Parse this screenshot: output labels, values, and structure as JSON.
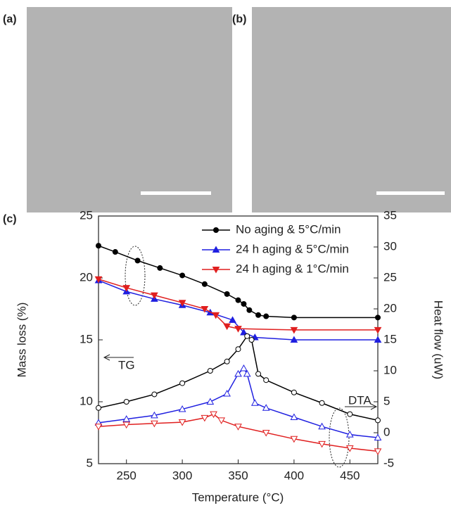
{
  "panel_labels": [
    "(a)",
    "(b)"
  ],
  "chart_data": {
    "type": "line",
    "label": "(c)",
    "xlabel": "Temperature (°C)",
    "ylabel": "Mass loss (%)",
    "y2label": "Heat flow (uW)",
    "xlim": [
      225,
      475
    ],
    "xticks": [
      250,
      300,
      350,
      400,
      450
    ],
    "ylim": [
      5,
      25
    ],
    "yticks": [
      5,
      10,
      15,
      20,
      25
    ],
    "y2lim": [
      -5,
      35
    ],
    "y2ticks": [
      -5,
      0,
      5,
      10,
      15,
      20,
      25,
      30,
      35
    ],
    "legend": "upper right",
    "annotations": [
      "TG",
      "DTA"
    ],
    "series": [
      {
        "name": "No aging & 5°C/min",
        "color": "#000000",
        "marker": "circle",
        "filled": true,
        "x": [
          225,
          240,
          260,
          280,
          300,
          320,
          340,
          350,
          355,
          360,
          368,
          375,
          400,
          475
        ],
        "values": [
          22.6,
          22.1,
          21.4,
          20.8,
          20.2,
          19.5,
          18.7,
          18.2,
          17.9,
          17.4,
          17.0,
          16.9,
          16.8,
          16.8
        ]
      },
      {
        "name": "24 h aging & 5°C/min",
        "color": "#1f1fe0",
        "marker": "triangle-up",
        "filled": true,
        "x": [
          225,
          250,
          275,
          300,
          325,
          345,
          355,
          365,
          400,
          475
        ],
        "values": [
          19.8,
          18.9,
          18.3,
          17.8,
          17.2,
          16.6,
          15.6,
          15.2,
          15.0,
          15.0
        ]
      },
      {
        "name": "24 h aging & 1°C/min",
        "color": "#e01f1f",
        "marker": "triangle-down",
        "filled": true,
        "x": [
          225,
          250,
          275,
          300,
          320,
          330,
          340,
          350,
          400,
          475
        ],
        "values": [
          19.9,
          19.2,
          18.6,
          18.0,
          17.5,
          17.0,
          16.1,
          15.9,
          15.8,
          15.8
        ]
      },
      {
        "color": "#000000",
        "marker": "circle",
        "filled": false,
        "axis": "y2",
        "x": [
          225,
          250,
          275,
          300,
          325,
          340,
          350,
          358,
          362,
          368,
          375,
          400,
          425,
          450,
          475
        ],
        "values": [
          4.0,
          5.0,
          6.2,
          8.0,
          10.0,
          11.5,
          13.5,
          15.6,
          15.0,
          9.5,
          8.5,
          6.5,
          4.8,
          3.0,
          2.0
        ]
      },
      {
        "color": "#1f1fe0",
        "marker": "triangle-up",
        "filled": false,
        "axis": "y2",
        "x": [
          225,
          250,
          275,
          300,
          325,
          340,
          350,
          355,
          358,
          365,
          375,
          400,
          425,
          450,
          475
        ],
        "values": [
          1.6,
          2.2,
          2.8,
          3.8,
          5.0,
          6.3,
          9.5,
          10.4,
          9.5,
          4.8,
          4.0,
          2.5,
          1.0,
          -0.3,
          -0.8
        ]
      },
      {
        "color": "#e01f1f",
        "marker": "triangle-down",
        "filled": false,
        "axis": "y2",
        "x": [
          225,
          250,
          275,
          300,
          320,
          328,
          335,
          350,
          375,
          400,
          425,
          450,
          475
        ],
        "values": [
          1.0,
          1.3,
          1.5,
          1.7,
          2.4,
          3.0,
          2.0,
          1.0,
          0.0,
          -1.0,
          -1.8,
          -2.5,
          -3.0
        ]
      }
    ]
  }
}
